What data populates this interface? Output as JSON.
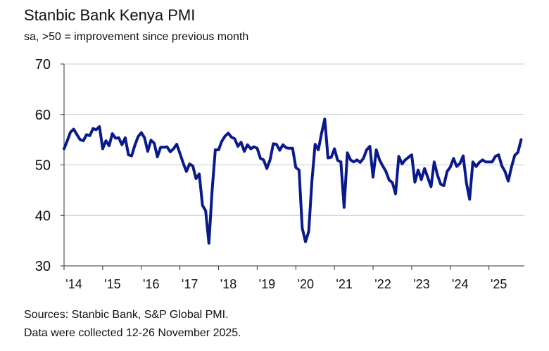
{
  "chart_data": {
    "type": "line",
    "title": "Stanbic Bank Kenya PMI",
    "subtitle": "sa, >50 = improvement since previous month",
    "xlabel": "",
    "ylabel": "",
    "ylim": [
      30,
      70
    ],
    "yticks": [
      30,
      40,
      50,
      60,
      70
    ],
    "xlim": [
      2014.0,
      2025.917
    ],
    "xtick_labels": [
      "'14",
      "'15",
      "'16",
      "'17",
      "'18",
      "'19",
      "'20",
      "'21",
      "'22",
      "'23",
      "'24",
      "'25"
    ],
    "xtick_years": [
      2014,
      2015,
      2016,
      2017,
      2018,
      2019,
      2020,
      2021,
      2022,
      2023,
      2024,
      2025
    ],
    "grid": "horizontal",
    "legend": "none",
    "line_color": "#0a1a8c",
    "series": [
      {
        "start": "2014-01",
        "frequency": "monthly",
        "values": [
          53.2,
          54.8,
          56.5,
          57.1,
          56.0,
          55.0,
          54.8,
          56.0,
          55.8,
          57.2,
          57.0,
          57.6,
          53.2,
          54.8,
          53.8,
          56.2,
          55.3,
          55.4,
          54.0,
          55.4,
          52.0,
          51.8,
          53.9,
          55.6,
          56.4,
          55.4,
          52.7,
          54.9,
          54.3,
          51.6,
          53.5,
          53.5,
          53.6,
          52.6,
          53.2,
          54.1,
          52.3,
          50.4,
          48.7,
          50.2,
          49.8,
          47.3,
          48.2,
          42.0,
          40.9,
          34.5,
          45.0,
          53.0,
          53.0,
          54.7,
          55.7,
          56.3,
          55.5,
          55.2,
          53.7,
          54.5,
          52.7,
          54.0,
          53.2,
          53.6,
          53.3,
          51.3,
          51.0,
          49.3,
          51.0,
          54.2,
          54.1,
          52.9,
          54.0,
          53.4,
          53.3,
          53.3,
          49.5,
          49.0,
          37.5,
          34.8,
          36.8,
          46.7,
          54.1,
          53.0,
          56.3,
          59.1,
          51.4,
          51.5,
          53.2,
          50.9,
          50.6,
          41.6,
          52.4,
          51.0,
          50.6,
          51.0,
          50.5,
          51.3,
          53.0,
          53.7,
          47.6,
          53.0,
          51.0,
          49.8,
          48.7,
          47.0,
          46.5,
          44.3,
          51.7,
          50.2,
          51.0,
          51.5,
          52.0,
          46.6,
          49.0,
          47.1,
          49.3,
          47.5,
          45.7,
          50.6,
          48.0,
          46.2,
          45.9,
          48.7,
          49.6,
          51.3,
          49.7,
          50.3,
          51.8,
          46.4,
          43.2,
          50.6,
          49.7,
          50.5,
          51.0,
          50.6,
          50.6,
          50.6,
          51.7,
          52.0,
          49.8,
          48.7,
          46.8,
          49.6,
          51.9,
          52.5,
          55.0
        ]
      }
    ]
  },
  "sources": {
    "line1": "Sources: Stanbic Bank, S&P Global PMI.",
    "line2": "Data were collected 12-26 November 2025."
  }
}
